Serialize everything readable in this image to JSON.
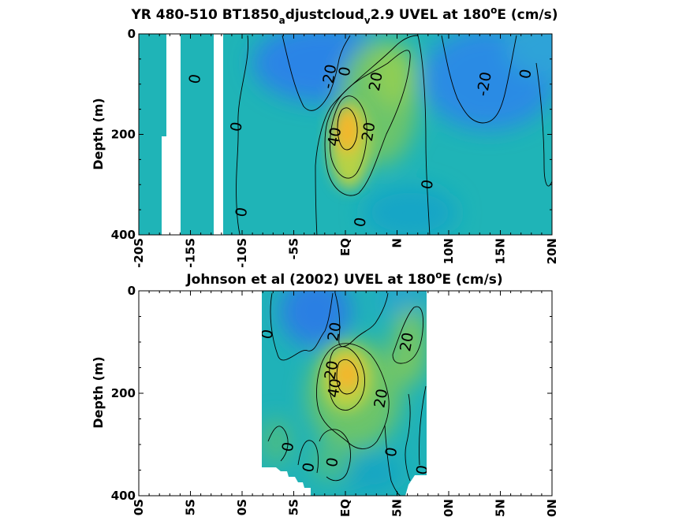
{
  "chart_data": [
    {
      "type": "heatmap",
      "title_main": "YR 480-510 BT1850",
      "title_sub1": "a",
      "title_mid": "djustcloud",
      "title_sub2": "v",
      "title_rest": "2.9 UVEL at 180",
      "title_sup": "o",
      "title_end": "E (cm/s)",
      "ylabel": "Depth (m)",
      "xlim": [
        -20,
        20
      ],
      "ylim": [
        0,
        400
      ],
      "x_ticks": [
        {
          "value": -20,
          "label": "-20S"
        },
        {
          "value": -15,
          "label": "-15S"
        },
        {
          "value": -10,
          "label": "-10S"
        },
        {
          "value": -5,
          "label": "-5S"
        },
        {
          "value": 0,
          "label": "EQ"
        },
        {
          "value": 5,
          "label": "N"
        },
        {
          "value": 10,
          "label": "10N"
        },
        {
          "value": 15,
          "label": "15N"
        },
        {
          "value": 20,
          "label": "20N"
        }
      ],
      "y_ticks": [
        {
          "value": 0,
          "label": "0"
        },
        {
          "value": 200,
          "label": "200"
        },
        {
          "value": 400,
          "label": "400"
        }
      ],
      "contour_labels": [
        {
          "x": -14.5,
          "y": 90,
          "text": "0"
        },
        {
          "x": -10.5,
          "y": 185,
          "text": "0"
        },
        {
          "x": -10,
          "y": 355,
          "text": "0"
        },
        {
          "x": -1.5,
          "y": 85,
          "text": "-20"
        },
        {
          "x": 0,
          "y": 75,
          "text": "0"
        },
        {
          "x": 3,
          "y": 95,
          "text": "20"
        },
        {
          "x": -1,
          "y": 205,
          "text": "40"
        },
        {
          "x": 2.3,
          "y": 195,
          "text": "20"
        },
        {
          "x": 8,
          "y": 300,
          "text": "0"
        },
        {
          "x": 1.5,
          "y": 375,
          "text": "0"
        },
        {
          "x": 13.5,
          "y": 100,
          "text": "-20"
        },
        {
          "x": 17.5,
          "y": 80,
          "text": "0"
        }
      ],
      "colors": {
        "min": "#2b7be0",
        "mid": "#19b8b8",
        "high": "#a8d14a",
        "max": "#f5b52a"
      }
    },
    {
      "type": "heatmap",
      "title_main": "Johnson et al (2002) UVEL at 180",
      "title_sup": "o",
      "title_end": "E (cm/s)",
      "ylabel": "Depth (m)",
      "xlim": [
        -20,
        20
      ],
      "ylim": [
        0,
        400
      ],
      "x_ticks": [
        {
          "value": -20,
          "label": "0S"
        },
        {
          "value": -15,
          "label": "5S"
        },
        {
          "value": -10,
          "label": "0S"
        },
        {
          "value": -5,
          "label": "5S"
        },
        {
          "value": 0,
          "label": "EQ"
        },
        {
          "value": 5,
          "label": "5N"
        },
        {
          "value": 10,
          "label": "0N"
        },
        {
          "value": 15,
          "label": "5N"
        },
        {
          "value": 20,
          "label": "0N"
        }
      ],
      "y_ticks": [
        {
          "value": 0,
          "label": "0"
        },
        {
          "value": 200,
          "label": "200"
        },
        {
          "value": 400,
          "label": "400"
        }
      ],
      "contour_labels": [
        {
          "x": -7.5,
          "y": 85,
          "text": "0"
        },
        {
          "x": -1,
          "y": 80,
          "text": "20"
        },
        {
          "x": -1.3,
          "y": 155,
          "text": "20"
        },
        {
          "x": -1,
          "y": 190,
          "text": "40"
        },
        {
          "x": 3.5,
          "y": 210,
          "text": "20"
        },
        {
          "x": 6,
          "y": 100,
          "text": "20"
        },
        {
          "x": -5.5,
          "y": 305,
          "text": "0"
        },
        {
          "x": -3.5,
          "y": 345,
          "text": "0"
        },
        {
          "x": -1.2,
          "y": 335,
          "text": "0"
        },
        {
          "x": 4.5,
          "y": 315,
          "text": "0"
        },
        {
          "x": 7.5,
          "y": 350,
          "text": "0"
        }
      ],
      "colors": {
        "min": "#2b7be0",
        "mid": "#19b8b8",
        "high": "#a8d14a",
        "max": "#f5b52a"
      }
    }
  ]
}
